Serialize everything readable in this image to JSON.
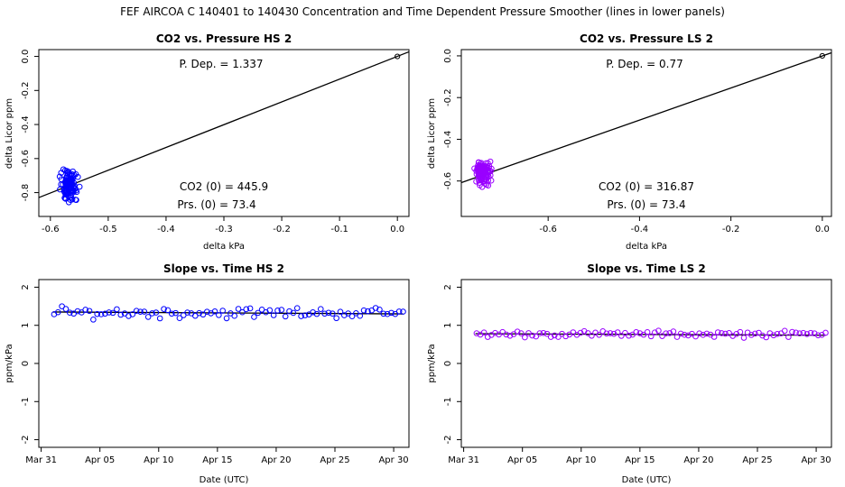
{
  "figure_title": "FEF   AIRCOA C  140401 to 140430   Concentration and Time Dependent Pressure Smoother (lines in lower panels)",
  "colors": {
    "hs": "#0000ff",
    "ls": "#9900ff",
    "axis": "#000000"
  },
  "chart_data": [
    {
      "id": "p1",
      "type": "scatter",
      "title": "CO2 vs. Pressure HS 2",
      "xlabel": "delta kPa",
      "ylabel": "delta Licor ppm",
      "xlim": [
        -0.62,
        0.02
      ],
      "ylim": [
        -0.94,
        0.04
      ],
      "xticks": [
        -0.6,
        -0.5,
        -0.4,
        -0.3,
        -0.2,
        -0.1,
        0.0
      ],
      "xtick_labels": [
        "-0.6",
        "-0.5",
        "-0.4",
        "-0.3",
        "-0.2",
        "-0.1",
        "0.0"
      ],
      "yticks": [
        0.0,
        -0.2,
        -0.4,
        -0.6,
        -0.8
      ],
      "ytick_labels": [
        "0.0",
        "-0.2",
        "-0.4",
        "-0.6",
        "-0.8"
      ],
      "fit_line": {
        "x": [
          -0.62,
          0.02
        ],
        "y": [
          -0.829,
          0.027
        ]
      },
      "reference_point": {
        "x": 0.0,
        "y": 0.0
      },
      "cluster": {
        "x_center": -0.568,
        "x_spread": 0.012,
        "y_center": -0.76,
        "y_spread": 0.07,
        "n": 120
      },
      "annotations": {
        "p_dep": "P. Dep. =  1.337",
        "co2_0": "CO2 (0) =  445.9",
        "prs_0": "Prs. (0) = 73.4"
      },
      "color": "#0000ff"
    },
    {
      "id": "p2",
      "type": "scatter",
      "title": "CO2 vs. Pressure LS 2",
      "xlabel": "delta kPa",
      "ylabel": "delta Licor ppm",
      "xlim": [
        -0.79,
        0.02
      ],
      "ylim": [
        -0.77,
        0.03
      ],
      "xticks": [
        -0.6,
        -0.4,
        -0.2,
        0.0
      ],
      "xtick_labels": [
        "-0.6",
        "-0.4",
        "-0.2",
        "0.0"
      ],
      "yticks": [
        0.0,
        -0.2,
        -0.4,
        -0.6
      ],
      "ytick_labels": [
        "0.0",
        "-0.2",
        "-0.4",
        "-0.6"
      ],
      "fit_line": {
        "x": [
          -0.79,
          0.02
        ],
        "y": [
          -0.608,
          0.015
        ]
      },
      "reference_point": {
        "x": 0.0,
        "y": 0.0
      },
      "cluster": {
        "x_center": -0.743,
        "x_spread": 0.014,
        "y_center": -0.555,
        "y_spread": 0.045,
        "n": 120
      },
      "annotations": {
        "p_dep": "P. Dep. =  0.77",
        "co2_0": "CO2 (0) =  316.87",
        "prs_0": "Prs. (0) = 73.4"
      },
      "color": "#9900ff"
    },
    {
      "id": "p3",
      "type": "line",
      "title": "Slope vs. Time HS 2",
      "xlabel": "Date (UTC)",
      "ylabel": "ppm/kPa",
      "xlim": [
        -0.2,
        31.3
      ],
      "ylim": [
        -2.2,
        2.2
      ],
      "xticks": [
        0,
        5,
        10,
        15,
        20,
        25,
        30
      ],
      "xtick_labels": [
        "Mar 31",
        "Apr 05",
        "Apr 10",
        "Apr 15",
        "Apr 20",
        "Apr 25",
        "Apr 30"
      ],
      "yticks": [
        -2,
        -1,
        0,
        1,
        2
      ],
      "ytick_labels": [
        "-2",
        "-1",
        "0",
        "1",
        "2"
      ],
      "smoother": {
        "x": [
          1,
          30.8
        ],
        "y": [
          1.35,
          1.3
        ]
      },
      "points": {
        "x_start": 1.1,
        "x_end": 30.8,
        "n": 90,
        "center": 1.33,
        "spread": 0.12
      },
      "color": "#0000ff"
    },
    {
      "id": "p4",
      "type": "line",
      "title": "Slope vs. Time LS 2",
      "xlabel": "Date (UTC)",
      "ylabel": "ppm/kPa",
      "xlim": [
        -0.2,
        31.3
      ],
      "ylim": [
        -2.2,
        2.2
      ],
      "xticks": [
        0,
        5,
        10,
        15,
        20,
        25,
        30
      ],
      "xtick_labels": [
        "Mar 31",
        "Apr 05",
        "Apr 10",
        "Apr 15",
        "Apr 20",
        "Apr 25",
        "Apr 30"
      ],
      "yticks": [
        -2,
        -1,
        0,
        1,
        2
      ],
      "ytick_labels": [
        "-2",
        "-1",
        "0",
        "1",
        "2"
      ],
      "smoother": {
        "x": [
          1,
          30.8
        ],
        "y": [
          0.78,
          0.74
        ]
      },
      "points": {
        "x_start": 1.1,
        "x_end": 30.8,
        "n": 95,
        "center": 0.77,
        "spread": 0.07
      },
      "color": "#9900ff"
    }
  ]
}
